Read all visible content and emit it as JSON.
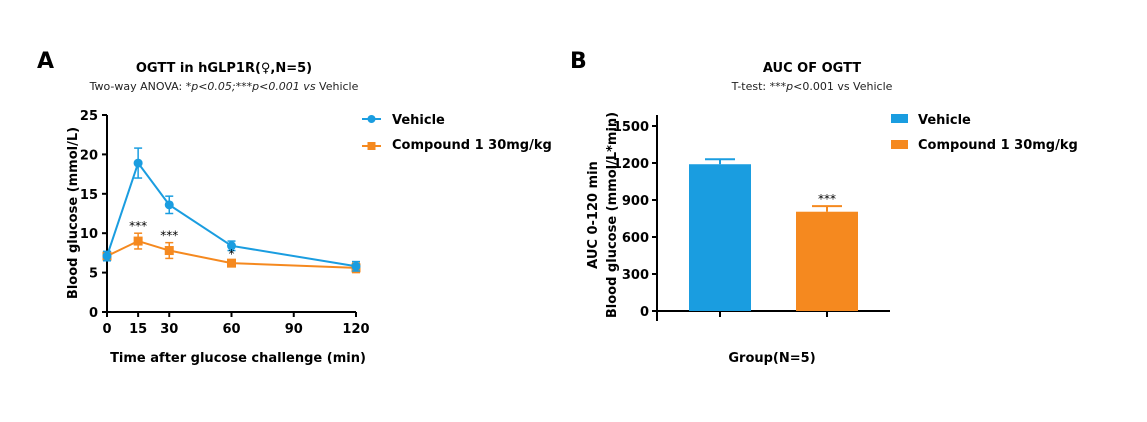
{
  "colors": {
    "vehicle": "#1a9de0",
    "compound": "#f5891f",
    "axis": "#000000"
  },
  "chart_data": [
    {
      "type": "line",
      "panel_label": "A",
      "title": "OGTT in hGLP1R(♀,N=5)",
      "subtitle_parts": [
        "Two-way ANOVA: ",
        "*p<0.05;***p<0.001 vs",
        " Vehicle"
      ],
      "xlabel": "Time after glucose challenge (min)",
      "ylabel": "Blood glucose (mmol/L)",
      "xlim": [
        0,
        120
      ],
      "ylim": [
        0,
        25
      ],
      "xticks": [
        "0",
        "15",
        "30",
        "60",
        "90",
        "120"
      ],
      "yticks": [
        "0",
        "5",
        "10",
        "15",
        "20",
        "25"
      ],
      "legend": "top-right",
      "x": [
        0,
        15,
        30,
        60,
        120
      ],
      "series": [
        {
          "name": "Vehicle",
          "marker": "circle",
          "values": [
            7.1,
            18.9,
            13.6,
            8.4,
            5.8
          ],
          "errors": [
            0.6,
            1.9,
            1.1,
            0.6,
            0.6
          ]
        },
        {
          "name": "Compound 1 30mg/kg",
          "marker": "square",
          "values": [
            7.1,
            9.0,
            7.8,
            6.2,
            5.6
          ],
          "errors": [
            0.4,
            1.0,
            1.0,
            0.3,
            0.6
          ]
        }
      ],
      "annotations": [
        {
          "x": 15,
          "text": "***"
        },
        {
          "x": 30,
          "text": "***"
        },
        {
          "x": 60,
          "text": "*"
        }
      ]
    },
    {
      "type": "bar",
      "panel_label": "B",
      "title": "AUC OF OGTT",
      "subtitle_parts": [
        "T-test: ***",
        "p",
        "<0.001 vs Vehicle"
      ],
      "xlabel": "Group(N=5)",
      "ylabel_lines": [
        "AUC  0-120 min",
        "Blood glucose (mmol/L*min)"
      ],
      "ylim": [
        0,
        1500
      ],
      "yticks": [
        "0",
        "300",
        "600",
        "900",
        "1200",
        "1500"
      ],
      "legend": "top-right",
      "categories": [
        "Vehicle",
        "Compound 1 30mg/kg"
      ],
      "values": [
        1190,
        805
      ],
      "errors": [
        40,
        45
      ],
      "annotations": [
        {
          "category": "Compound 1 30mg/kg",
          "text": "***"
        }
      ]
    }
  ]
}
